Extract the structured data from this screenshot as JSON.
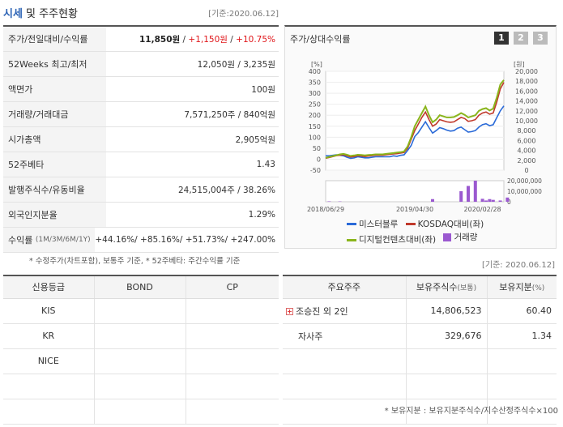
{
  "header": {
    "title_blue": "시세",
    "title_rest": " 및 주주현황",
    "date": "[기준:2020.06.12]"
  },
  "market": {
    "rows": [
      {
        "label": "주가/전일대비/수익률",
        "price": "11,850원",
        "sep1": " / ",
        "change": "+1,150원",
        "sep2": " / ",
        "rate": "+10.75%"
      },
      {
        "label": "52Weeks 최고/최저",
        "value": "12,050원 / 3,235원"
      },
      {
        "label": "액면가",
        "value": "100원"
      },
      {
        "label": "거래량/거래대금",
        "value": "7,571,250주 / 840억원"
      },
      {
        "label": "시가총액",
        "value": "2,905억원"
      },
      {
        "label": "52주베타",
        "value": "1.43"
      },
      {
        "label": "발행주식수/유동비율",
        "value": "24,515,004주 / 38.26%"
      },
      {
        "label": "외국인지분율",
        "value": "1.29%"
      },
      {
        "label": "수익률",
        "label_small": "(1M/3M/6M/1Y)",
        "value": "+44.16%/ +85.16%/ +51.73%/ +247.00%"
      }
    ],
    "note": "* 수정주가(차트포함), 보통주 기준, * 52주베타: 주간수익률 기준"
  },
  "chart_panel": {
    "title": "주가/상대수익률",
    "tabs": [
      "1",
      "2",
      "3"
    ],
    "active_tab": "1",
    "legend": {
      "s1": "미스터블루",
      "s2": "KOSDAQ대비(좌)",
      "s3": "디지털컨텐츠대비(좌)",
      "s4": "거래량"
    },
    "colors": {
      "s1": "#2a6ad8",
      "s2": "#c0392b",
      "s3": "#8ab51c",
      "vol": "#9b59d0"
    }
  },
  "chart_data": {
    "type": "line",
    "left_unit": "[%]",
    "right_unit": "[원]",
    "left_ticks": [
      "400",
      "350",
      "300",
      "250",
      "200",
      "150",
      "100",
      "50",
      "0",
      "-50"
    ],
    "right_ticks": [
      "20,000",
      "18,000",
      "16,000",
      "14,000",
      "12,000",
      "10,000",
      "8,000",
      "6,000",
      "4,000",
      "2,000",
      "0"
    ],
    "vol_ticks": [
      "20,000,000",
      "10,000,000",
      "0"
    ],
    "x_ticks": [
      "2018/06/29",
      "2019/04/30",
      "2020/02/28"
    ],
    "ylim_left": [
      -50,
      400
    ],
    "ylim_right": [
      0,
      20000
    ],
    "ylim_vol": [
      0,
      20000000
    ],
    "x_span": 51,
    "series": [
      {
        "name": "미스터블루",
        "axis": "right",
        "values": [
          2900,
          2900,
          3000,
          3100,
          3000,
          2900,
          2600,
          2400,
          2500,
          2700,
          2600,
          2500,
          2500,
          2600,
          2700,
          2700,
          2700,
          2700,
          2700,
          2900,
          2800,
          3000,
          3100,
          4000,
          5000,
          6800,
          7600,
          8700,
          9800,
          8600,
          7500,
          8000,
          8600,
          8400,
          8100,
          7900,
          8000,
          8500,
          8700,
          8200,
          7700,
          7800,
          8000,
          8700,
          9200,
          9400,
          9000,
          9200,
          10600,
          12000,
          13000
        ]
      },
      {
        "name": "KOSDAQ대비(좌)",
        "axis": "left",
        "values": [
          4,
          8,
          12,
          16,
          18,
          20,
          15,
          10,
          12,
          16,
          14,
          12,
          14,
          16,
          18,
          18,
          18,
          20,
          22,
          24,
          25,
          28,
          30,
          50,
          90,
          130,
          160,
          190,
          215,
          180,
          150,
          160,
          180,
          175,
          170,
          168,
          170,
          180,
          190,
          185,
          172,
          175,
          180,
          200,
          210,
          215,
          205,
          210,
          260,
          320,
          350
        ]
      },
      {
        "name": "디지털컨텐츠대비(좌)",
        "axis": "left",
        "values": [
          6,
          10,
          14,
          18,
          22,
          24,
          20,
          15,
          17,
          20,
          19,
          17,
          19,
          20,
          22,
          22,
          22,
          24,
          26,
          28,
          30,
          32,
          35,
          58,
          100,
          150,
          180,
          210,
          240,
          200,
          168,
          180,
          200,
          195,
          190,
          190,
          192,
          200,
          210,
          202,
          190,
          195,
          200,
          220,
          228,
          232,
          222,
          230,
          280,
          340,
          360
        ]
      }
    ],
    "volume": {
      "name": "거래량",
      "bars": [
        [
          1,
          0.4
        ],
        [
          4,
          0.3
        ],
        [
          30,
          2.5
        ],
        [
          38,
          10
        ],
        [
          40,
          15
        ],
        [
          42,
          20
        ],
        [
          44,
          2.8
        ],
        [
          45,
          1.2
        ],
        [
          46,
          2.5
        ],
        [
          47,
          1.8
        ],
        [
          49,
          1.2
        ],
        [
          51,
          4
        ]
      ]
    }
  },
  "holders": {
    "date": "[기준: 2020.06.12]",
    "headers": [
      "주요주주",
      "보유주식수",
      "(보통)",
      "보유지분",
      "(%)"
    ],
    "rows": [
      {
        "name": "조승진 외 2인",
        "expandable": true,
        "shares": "14,806,523",
        "pct": "60.40"
      },
      {
        "name": "자사주",
        "expandable": false,
        "shares": "329,676",
        "pct": "1.34"
      }
    ],
    "footnote": "* 보유지분 : 보유지분주식수/지수산정주식수×100"
  },
  "credit": {
    "headers": [
      "신용등급",
      "BOND",
      "CP"
    ],
    "rows": [
      "KIS",
      "KR",
      "NICE"
    ]
  }
}
